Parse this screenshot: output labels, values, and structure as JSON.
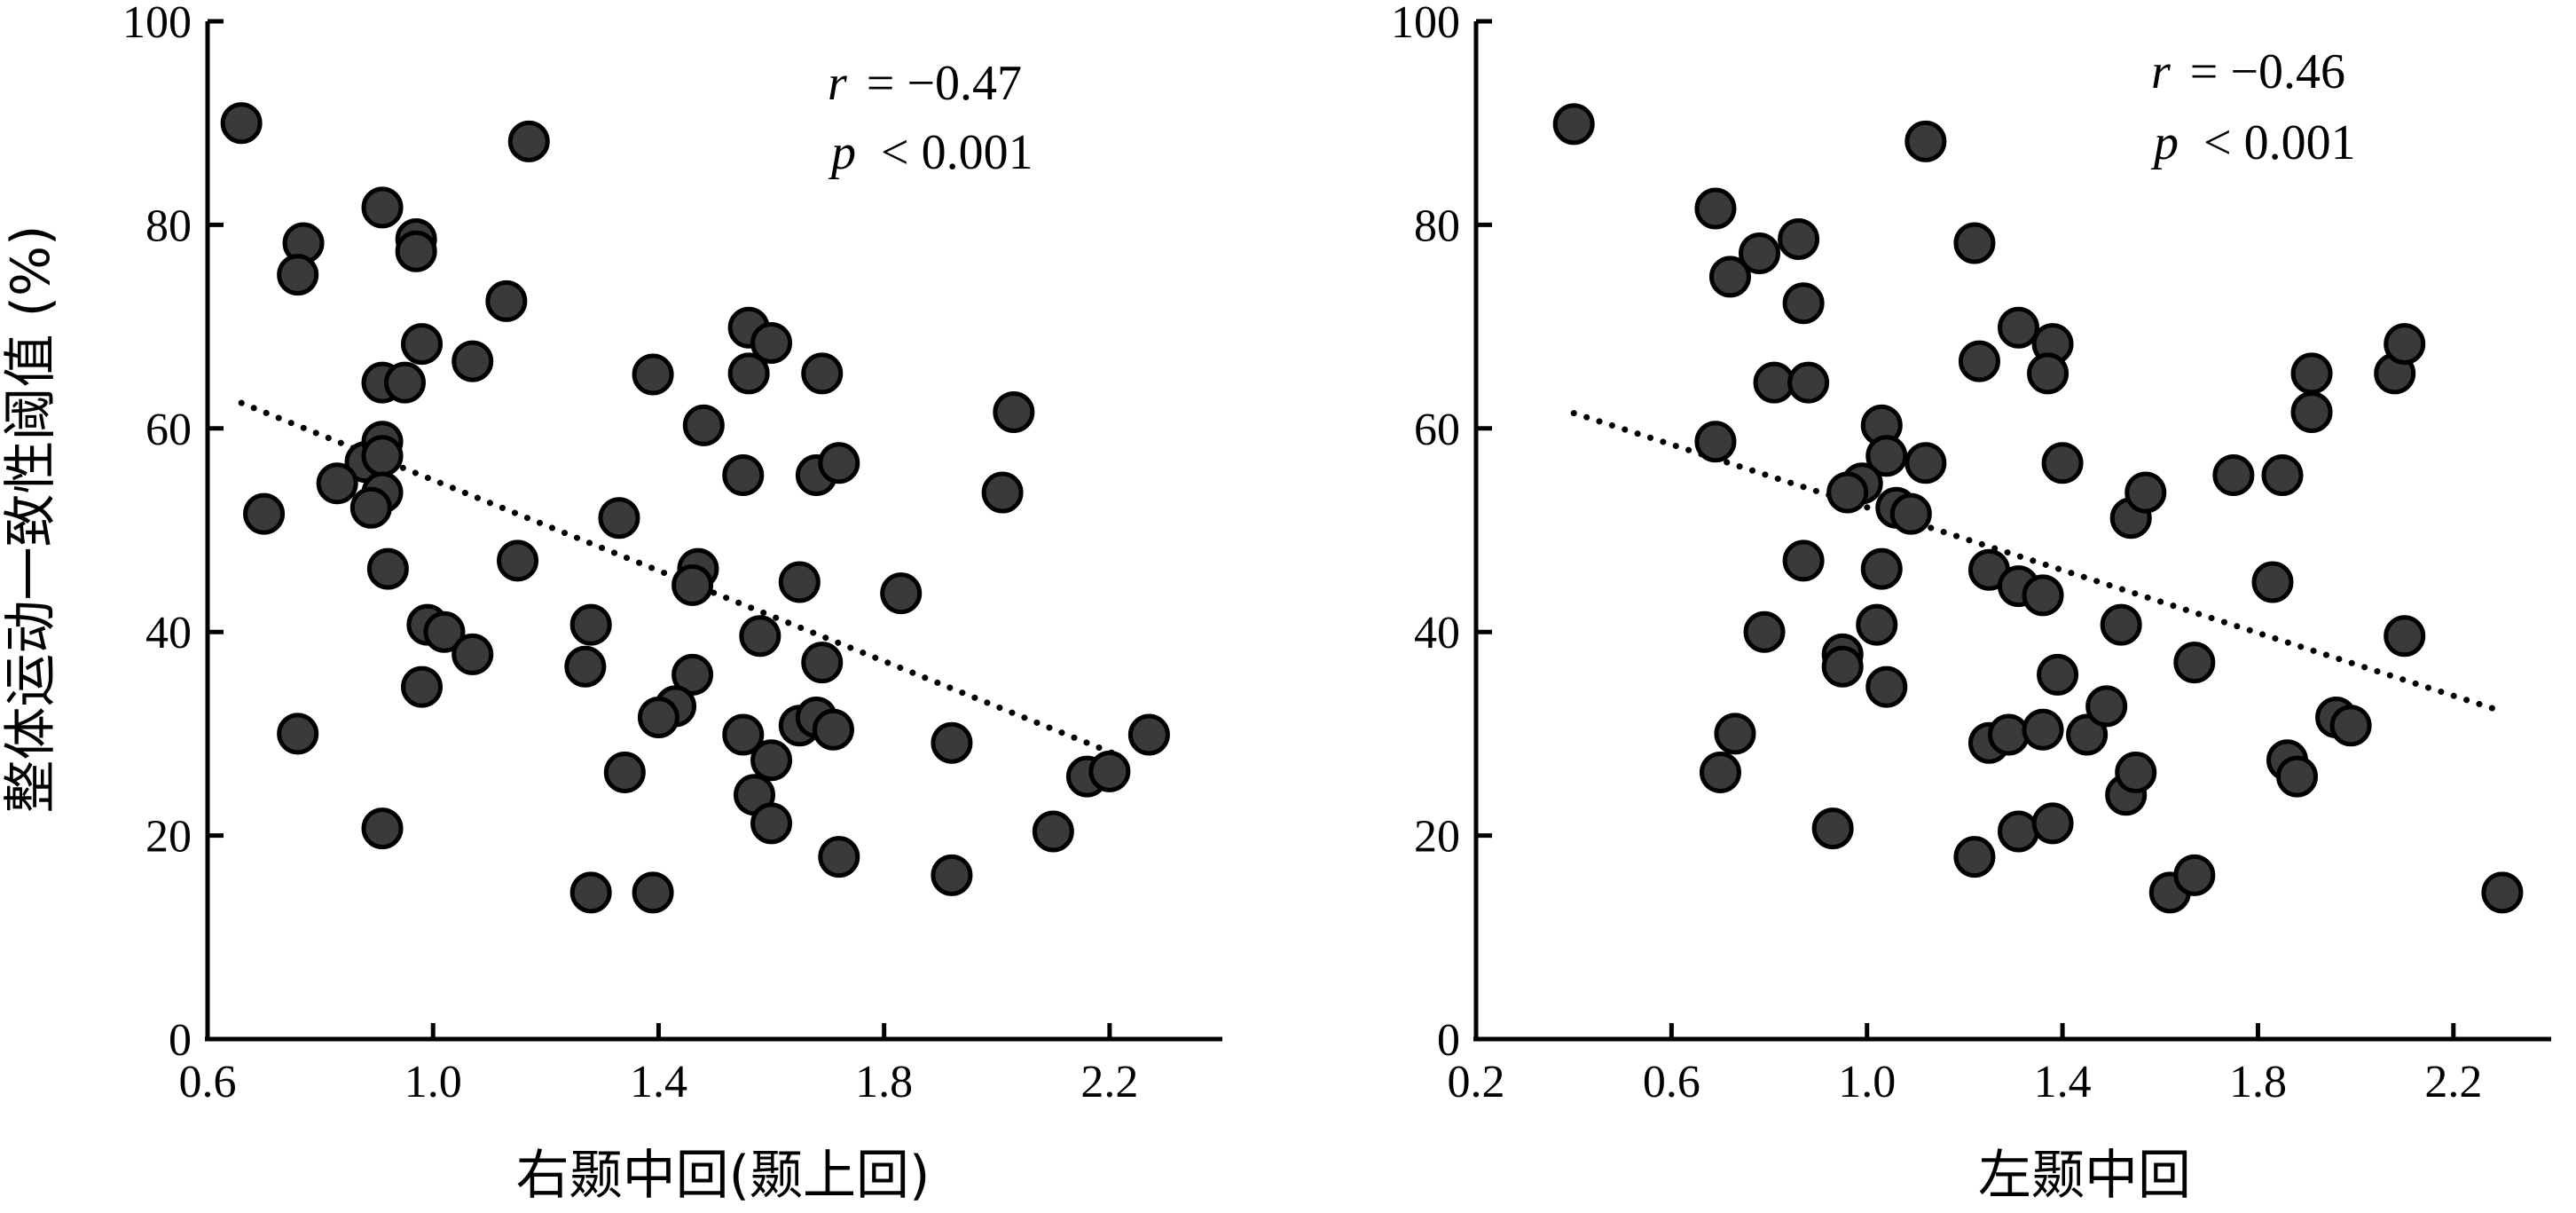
{
  "chart_data": [
    {
      "type": "scatter",
      "panel": "left",
      "ylabel": "整体运动一致性阈值 (%)",
      "xlabel": "右颞中回(颞上回)",
      "xlim": [
        0.6,
        2.4
      ],
      "ylim": [
        0,
        100
      ],
      "xticks": [
        "0.6",
        "1.0",
        "1.4",
        "1.8",
        "2.2"
      ],
      "yticks": [
        "0",
        "20",
        "40",
        "60",
        "80",
        "100"
      ],
      "stats": {
        "r_symbol": "r",
        "r_value": "= −0.47",
        "p_symbol": "p",
        "p_value": "< 0.001"
      },
      "trendline": {
        "x1": 0.66,
        "y1": 62.5,
        "x2": 2.21,
        "y2": 28.0
      },
      "marker_color": "#3a3a3a",
      "points": [
        [
          0.66,
          90
        ],
        [
          1.17,
          88.2
        ],
        [
          0.91,
          81.7
        ],
        [
          0.77,
          78.2
        ],
        [
          0.76,
          75.1
        ],
        [
          0.97,
          78.6
        ],
        [
          0.97,
          77.4
        ],
        [
          1.13,
          72.5
        ],
        [
          0.98,
          68.3
        ],
        [
          1.07,
          66.6
        ],
        [
          0.91,
          64.5
        ],
        [
          0.95,
          64.5
        ],
        [
          0.88,
          56.7
        ],
        [
          0.91,
          58.7
        ],
        [
          0.91,
          57.3
        ],
        [
          0.83,
          54.6
        ],
        [
          0.91,
          53.7
        ],
        [
          0.89,
          52.2
        ],
        [
          0.7,
          51.6
        ],
        [
          0.92,
          46.2
        ],
        [
          1.15,
          47.0
        ],
        [
          0.99,
          40.7
        ],
        [
          1.02,
          40.0
        ],
        [
          1.07,
          37.8
        ],
        [
          0.98,
          34.6
        ],
        [
          0.76,
          30.0
        ],
        [
          0.91,
          20.7
        ],
        [
          1.28,
          40.7
        ],
        [
          1.27,
          36.6
        ],
        [
          1.33,
          51.2
        ],
        [
          1.39,
          65.3
        ],
        [
          1.48,
          60.3
        ],
        [
          1.55,
          55.4
        ],
        [
          1.56,
          69.9
        ],
        [
          1.56,
          65.4
        ],
        [
          1.6,
          68.4
        ],
        [
          1.69,
          65.4
        ],
        [
          1.68,
          55.4
        ],
        [
          1.72,
          56.6
        ],
        [
          1.47,
          46.2
        ],
        [
          1.46,
          44.6
        ],
        [
          1.65,
          44.9
        ],
        [
          1.58,
          39.6
        ],
        [
          1.69,
          37.0
        ],
        [
          1.46,
          35.8
        ],
        [
          1.43,
          32.7
        ],
        [
          1.4,
          31.6
        ],
        [
          1.55,
          29.9
        ],
        [
          1.65,
          30.8
        ],
        [
          1.68,
          31.6
        ],
        [
          1.71,
          30.4
        ],
        [
          1.34,
          26.2
        ],
        [
          1.6,
          27.4
        ],
        [
          1.57,
          24.0
        ],
        [
          1.6,
          21.2
        ],
        [
          1.28,
          14.4
        ],
        [
          1.39,
          14.4
        ],
        [
          1.72,
          17.9
        ],
        [
          1.83,
          43.8
        ],
        [
          1.92,
          29.1
        ],
        [
          1.92,
          16.1
        ],
        [
          2.03,
          61.6
        ],
        [
          2.01,
          53.7
        ],
        [
          2.1,
          20.4
        ],
        [
          2.16,
          25.8
        ],
        [
          2.2,
          26.3
        ],
        [
          2.27,
          29.9
        ]
      ]
    },
    {
      "type": "scatter",
      "panel": "right",
      "ylabel": "",
      "xlabel": "左颞中回",
      "xlim": [
        0.2,
        2.4
      ],
      "ylim": [
        0,
        100
      ],
      "xticks": [
        "0.2",
        "0.6",
        "1.0",
        "1.4",
        "1.8",
        "2.2"
      ],
      "yticks": [
        "0",
        "20",
        "40",
        "60",
        "80",
        "100"
      ],
      "stats": {
        "r_symbol": "r",
        "r_value": "= −0.46",
        "p_symbol": "p",
        "p_value": "< 0.001"
      },
      "trendline": {
        "x1": 0.4,
        "y1": 61.5,
        "x2": 2.28,
        "y2": 32.5
      },
      "marker_color": "#3a3a3a",
      "points": [
        [
          0.4,
          89.9
        ],
        [
          1.12,
          88.2
        ],
        [
          0.69,
          81.6
        ],
        [
          0.78,
          77.2
        ],
        [
          0.72,
          74.9
        ],
        [
          0.86,
          78.6
        ],
        [
          0.87,
          72.3
        ],
        [
          0.81,
          64.5
        ],
        [
          0.88,
          64.5
        ],
        [
          1.22,
          78.2
        ],
        [
          1.23,
          66.6
        ],
        [
          1.31,
          69.9
        ],
        [
          1.38,
          68.3
        ],
        [
          1.37,
          65.4
        ],
        [
          0.69,
          58.7
        ],
        [
          1.03,
          60.3
        ],
        [
          1.04,
          57.3
        ],
        [
          1.12,
          56.6
        ],
        [
          0.99,
          54.6
        ],
        [
          0.96,
          53.7
        ],
        [
          1.06,
          52.2
        ],
        [
          1.09,
          51.6
        ],
        [
          0.87,
          47.0
        ],
        [
          1.03,
          46.2
        ],
        [
          1.25,
          46.1
        ],
        [
          1.31,
          44.5
        ],
        [
          1.36,
          43.6
        ],
        [
          1.4,
          56.6
        ],
        [
          1.02,
          40.7
        ],
        [
          0.79,
          40.0
        ],
        [
          0.95,
          37.8
        ],
        [
          0.95,
          36.6
        ],
        [
          1.04,
          34.6
        ],
        [
          0.73,
          30.0
        ],
        [
          0.7,
          26.2
        ],
        [
          0.93,
          20.7
        ],
        [
          1.25,
          29.1
        ],
        [
          1.29,
          29.9
        ],
        [
          1.36,
          30.4
        ],
        [
          1.39,
          35.8
        ],
        [
          1.45,
          29.9
        ],
        [
          1.49,
          32.7
        ],
        [
          1.52,
          40.7
        ],
        [
          1.54,
          51.2
        ],
        [
          1.57,
          53.7
        ],
        [
          1.53,
          24.0
        ],
        [
          1.55,
          26.2
        ],
        [
          1.31,
          20.4
        ],
        [
          1.38,
          21.2
        ],
        [
          1.22,
          17.9
        ],
        [
          1.62,
          14.4
        ],
        [
          1.67,
          16.1
        ],
        [
          1.67,
          37.0
        ],
        [
          1.75,
          55.4
        ],
        [
          1.85,
          55.4
        ],
        [
          1.83,
          44.9
        ],
        [
          1.86,
          27.4
        ],
        [
          1.88,
          25.8
        ],
        [
          1.91,
          65.4
        ],
        [
          1.91,
          61.6
        ],
        [
          1.96,
          31.6
        ],
        [
          1.99,
          30.8
        ],
        [
          2.08,
          65.4
        ],
        [
          2.1,
          68.3
        ],
        [
          2.1,
          39.6
        ],
        [
          2.3,
          14.4
        ]
      ]
    }
  ]
}
